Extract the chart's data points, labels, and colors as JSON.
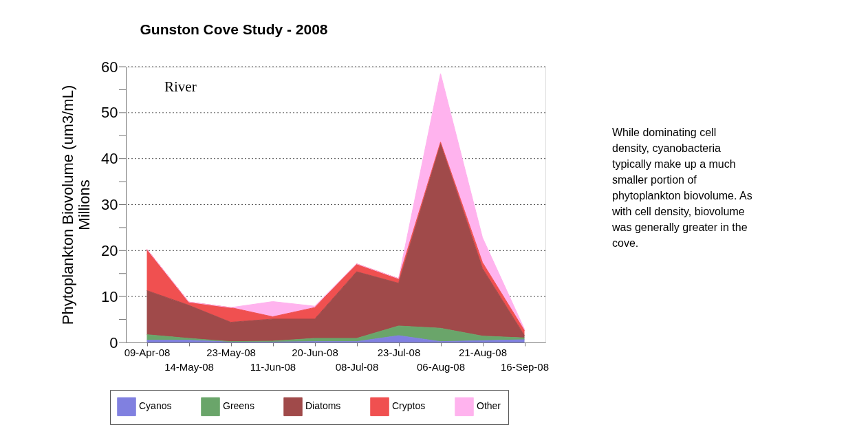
{
  "chart_data": {
    "type": "area",
    "stacked": true,
    "title": "Gunston Cove Study - 2008",
    "ylabel": "Phytoplankton Biovolume (um3/mL)\nMillions",
    "categories": [
      "09-Apr-08",
      "14-May-08",
      "23-May-08",
      "11-Jun-08",
      "20-Jun-08",
      "08-Jul-08",
      "23-Jul-08",
      "06-Aug-08",
      "21-Aug-08",
      "16-Sep-08"
    ],
    "series": [
      {
        "name": "Cyanos",
        "color": "#8080e0",
        "values": [
          0.5,
          0.5,
          0.1,
          0.1,
          0.2,
          0.2,
          1.5,
          0.2,
          0.4,
          0.6
        ]
      },
      {
        "name": "Greens",
        "color": "#6aa56a",
        "values": [
          1.2,
          0.4,
          0.1,
          0.2,
          0.7,
          0.7,
          2.1,
          2.9,
          1.0,
          0.4
        ]
      },
      {
        "name": "Diatoms",
        "color": "#a04a4a",
        "values": [
          9.6,
          7.2,
          4.2,
          4.8,
          4.2,
          14.5,
          9.3,
          40.2,
          14.7,
          0.5
        ]
      },
      {
        "name": "Cryptos",
        "color": "#f05050",
        "values": [
          9.0,
          0.7,
          3.2,
          0.5,
          2.5,
          1.7,
          1.0,
          0.3,
          1.3,
          1.1
        ]
      },
      {
        "name": "Other",
        "color": "#ffb3ee",
        "values": [
          0,
          0,
          0,
          3.3,
          0.3,
          0,
          0,
          14.9,
          5.4,
          0.3
        ]
      }
    ],
    "ylim": [
      0,
      60
    ],
    "yticks": [
      0,
      {
        "value": 5,
        "label": null
      },
      10,
      {
        "value": 15,
        "label": null
      },
      20,
      {
        "value": 25,
        "label": null
      },
      30,
      {
        "value": 35,
        "label": null
      },
      40,
      {
        "value": 45,
        "label": null
      },
      50,
      {
        "value": 55,
        "label": null
      },
      60
    ],
    "grid": "y",
    "legend": "bottom",
    "annotations": [
      "River",
      "While dominating cell density, cyanobacteria typically make up a much smaller portion of phytoplankton biovolume. As with cell density, biovolume was generally greater in the cove."
    ]
  }
}
